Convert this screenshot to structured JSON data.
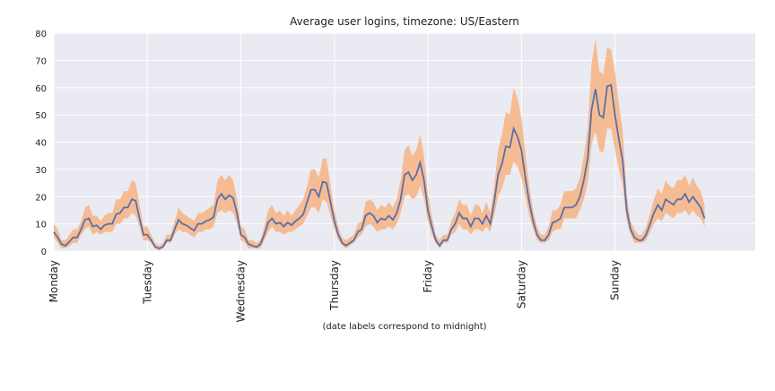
{
  "chart_data": {
    "type": "line-band",
    "title": "Average user logins, timezone: US/Eastern",
    "xlabel": "(date labels correspond to midnight)",
    "x": [
      0,
      1,
      2,
      3,
      4,
      5,
      6,
      7,
      8,
      9,
      10,
      11,
      12,
      13,
      14,
      15,
      16,
      17,
      18,
      19,
      20,
      21,
      22,
      23,
      24,
      25,
      26,
      27,
      28,
      29,
      30,
      31,
      32,
      33,
      34,
      35,
      36,
      37,
      38,
      39,
      40,
      41,
      42,
      43,
      44,
      45,
      46,
      47,
      48,
      49,
      50,
      51,
      52,
      53,
      54,
      55,
      56,
      57,
      58,
      59,
      60,
      61,
      62,
      63,
      64,
      65,
      66,
      67,
      68,
      69,
      70,
      71,
      72,
      73,
      74,
      75,
      76,
      77,
      78,
      79,
      80,
      81,
      82,
      83,
      84,
      85,
      86,
      87,
      88,
      89,
      90,
      91,
      92,
      93,
      94,
      95,
      96,
      97,
      98,
      99,
      100,
      101,
      102,
      103,
      104,
      105,
      106,
      107,
      108,
      109,
      110,
      111,
      112,
      113,
      114,
      115,
      116,
      117,
      118,
      119,
      120,
      121,
      122,
      123,
      124,
      125,
      126,
      127,
      128,
      129,
      130,
      131,
      132,
      133,
      134,
      135,
      136,
      137,
      138,
      139,
      140,
      141,
      142,
      143,
      144,
      145,
      146,
      147,
      148,
      149,
      150,
      151,
      152,
      153,
      154,
      155,
      156,
      157,
      158,
      159,
      160,
      161,
      162,
      163,
      164,
      165,
      166,
      167
    ],
    "values": [
      7,
      5,
      2.5,
      2,
      3.5,
      5,
      5,
      8,
      11.5,
      12,
      9,
      9.5,
      8,
      9.5,
      10,
      10,
      13.5,
      14,
      16,
      16,
      19,
      18.5,
      12,
      6,
      6,
      4,
      1.5,
      1,
      1.5,
      4,
      4,
      8,
      11.5,
      10,
      9.5,
      8.5,
      7.5,
      10,
      10,
      11,
      11.5,
      12.5,
      19,
      21,
      19,
      20.5,
      19.5,
      14,
      6,
      5,
      2.5,
      2,
      1.5,
      2.5,
      6,
      10.5,
      12,
      10,
      10.5,
      9,
      10.5,
      9.5,
      11,
      12,
      13.5,
      18,
      22.5,
      22.5,
      20,
      25.5,
      25,
      18,
      11,
      6,
      3,
      2,
      3,
      4,
      7,
      8,
      13,
      14,
      13,
      10.5,
      12,
      11.5,
      13,
      11.5,
      14,
      19,
      28,
      29,
      26,
      28,
      32.5,
      26,
      15,
      9,
      4,
      2,
      4,
      4,
      8,
      10,
      14,
      12,
      12,
      9,
      12,
      12,
      10,
      13,
      10,
      18,
      28,
      32,
      38.5,
      38,
      45,
      42,
      37,
      27,
      18,
      11,
      6,
      4,
      4,
      6,
      10.5,
      11,
      12,
      16,
      16,
      16,
      17,
      20,
      26,
      34,
      52,
      59.5,
      50,
      49,
      60.5,
      61,
      50,
      41,
      33,
      15,
      8,
      5,
      4,
      4,
      6,
      10,
      14,
      17,
      15,
      19,
      18,
      17,
      19,
      19,
      21,
      18,
      20,
      18,
      16,
      12
    ],
    "lower": [
      5,
      3,
      1,
      1,
      2,
      3,
      3,
      6,
      8,
      9,
      6,
      7,
      6,
      7,
      7,
      7,
      10,
      10,
      12,
      12,
      14,
      13,
      9,
      4,
      4,
      3,
      1,
      0,
      1,
      3,
      3,
      6,
      8,
      7,
      7,
      6,
      5,
      7,
      7,
      8,
      8,
      9,
      14,
      15,
      14,
      15,
      14,
      10,
      4,
      3,
      1,
      1,
      1,
      1,
      4,
      7,
      9,
      7,
      7,
      6,
      7,
      7,
      8,
      9,
      10,
      13,
      16,
      16,
      14,
      19,
      18,
      13,
      8,
      4,
      2,
      1,
      2,
      3,
      5,
      6,
      9,
      10,
      9,
      7,
      8,
      8,
      9,
      8,
      10,
      14,
      20,
      21,
      19,
      20,
      24,
      19,
      11,
      6,
      3,
      1,
      3,
      3,
      6,
      7,
      10,
      8,
      8,
      6,
      8,
      8,
      7,
      9,
      7,
      13,
      20,
      23,
      28,
      28,
      33,
      31,
      27,
      20,
      13,
      8,
      4,
      3,
      3,
      4,
      7,
      8,
      8,
      12,
      12,
      12,
      12,
      15,
      19,
      25,
      39,
      44,
      37,
      36,
      45,
      45,
      37,
      30,
      24,
      11,
      6,
      3,
      3,
      3,
      4,
      7,
      10,
      12,
      11,
      14,
      13,
      12,
      14,
      14,
      15,
      13,
      15,
      13,
      12,
      9
    ],
    "upper": [
      10,
      8,
      4,
      4,
      6,
      8,
      8,
      11,
      16,
      17,
      13,
      13,
      11,
      13,
      14,
      14,
      19,
      19,
      22,
      22,
      26,
      25,
      17,
      9,
      9,
      6,
      3,
      2,
      3,
      6,
      6,
      11,
      16,
      14,
      13,
      12,
      11,
      14,
      14,
      15,
      16,
      17,
      26,
      28,
      26,
      28,
      26,
      19,
      9,
      8,
      4,
      4,
      3,
      4,
      9,
      15,
      17,
      14,
      15,
      13,
      15,
      13,
      15,
      17,
      19,
      24,
      30,
      30,
      27,
      34,
      34,
      24,
      15,
      9,
      5,
      4,
      5,
      6,
      10,
      11,
      18,
      19,
      18,
      15,
      17,
      16,
      18,
      16,
      19,
      26,
      37,
      39,
      35,
      37,
      43,
      35,
      21,
      13,
      6,
      4,
      6,
      6,
      11,
      14,
      19,
      17,
      17,
      13,
      17,
      17,
      14,
      18,
      14,
      24,
      37,
      43,
      51,
      50,
      60,
      56,
      49,
      36,
      24,
      15,
      9,
      6,
      6,
      9,
      15,
      15,
      17,
      22,
      22,
      22,
      23,
      27,
      35,
      45,
      69,
      78,
      66,
      65,
      75,
      74,
      66,
      54,
      44,
      21,
      11,
      8,
      6,
      6,
      9,
      14,
      19,
      23,
      21,
      26,
      24,
      23,
      26,
      26,
      28,
      24,
      27,
      24,
      22,
      17
    ],
    "color": "#5b6fa8",
    "band_color": "#f5bc94",
    "xlim": [
      0,
      180
    ],
    "ylim": [
      0,
      80
    ],
    "xticks": [
      {
        "value": 0,
        "label": "Monday"
      },
      {
        "value": 24,
        "label": "Tuesday"
      },
      {
        "value": 48,
        "label": "Wednesday"
      },
      {
        "value": 72,
        "label": "Thursday"
      },
      {
        "value": 96,
        "label": "Friday"
      },
      {
        "value": 120,
        "label": "Saturday"
      },
      {
        "value": 144,
        "label": "Sunday"
      }
    ],
    "yticks": [
      0,
      10,
      20,
      30,
      40,
      50,
      60,
      70,
      80
    ],
    "grid": true
  }
}
